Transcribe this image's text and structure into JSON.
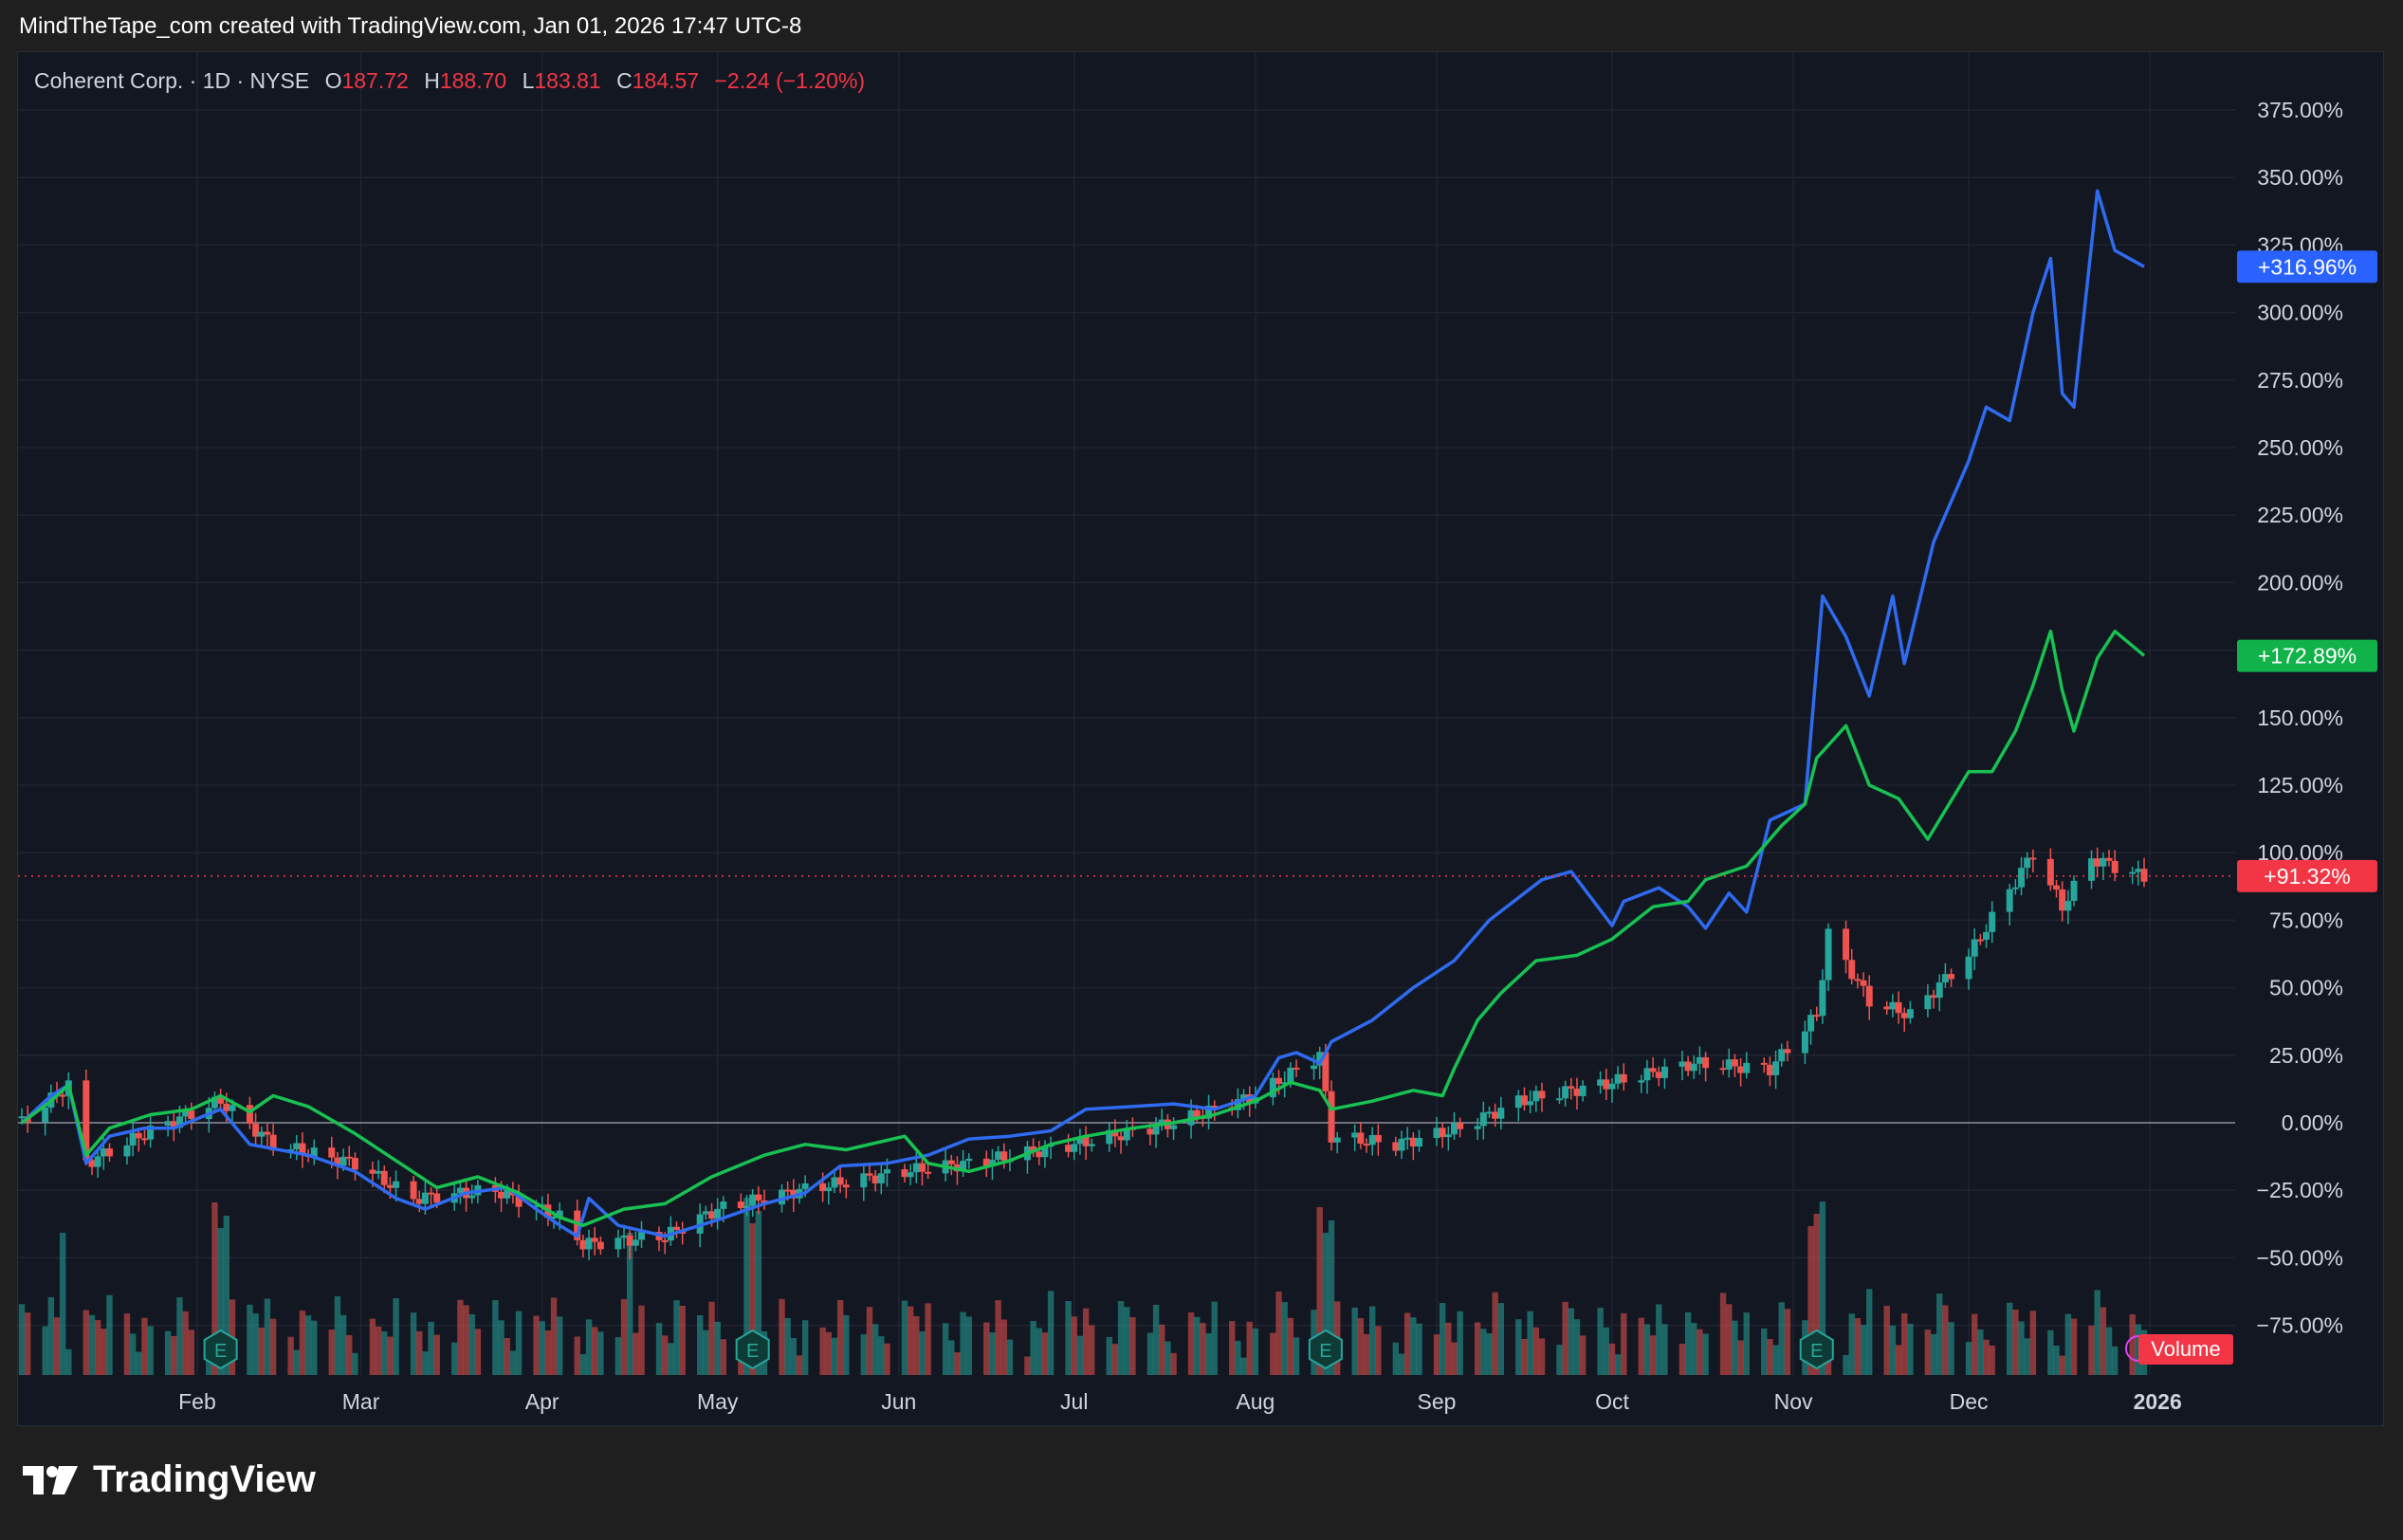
{
  "header": {
    "attribution": "MindTheTape_com created with TradingView.com, Jan 01, 2026 17:47 UTC-8"
  },
  "legend": {
    "symbol": "Coherent Corp. · 1D · NYSE",
    "open_label": "O",
    "open": "187.72",
    "high_label": "H",
    "high": "188.70",
    "low_label": "L",
    "low": "183.81",
    "close_label": "C",
    "close": "184.57",
    "change": "−2.24 (−1.20%)"
  },
  "footer": {
    "brand": "TradingView"
  },
  "colors": {
    "background": "#131722",
    "grid": "#1f2431",
    "axis_text": "#d1d4dc",
    "up": "#26a69a",
    "down": "#ef5350",
    "blue": "#2f6bf0",
    "green": "#18c152"
  },
  "chart_data": {
    "type": "line",
    "title": "",
    "x_labels": [
      "Feb",
      "Mar",
      "Apr",
      "May",
      "Jun",
      "Jul",
      "Aug",
      "Sep",
      "Oct",
      "Nov",
      "Dec",
      "2026"
    ],
    "y_ticks": [
      "375.00%",
      "350.00%",
      "325.00%",
      "300.00%",
      "275.00%",
      "250.00%",
      "225.00%",
      "200.00%",
      "150.00%",
      "125.00%",
      "100.00%",
      "75.00%",
      "50.00%",
      "25.00%",
      "0.00%",
      "−25.00%",
      "−50.00%",
      "−75.00%"
    ],
    "ylim": [
      -100,
      385
    ],
    "x_range": [
      "2025-01-02",
      "2025-12-31"
    ],
    "zero_line": 0,
    "grid": true,
    "last_value_labels": [
      {
        "series": "blue",
        "text": "+316.96%",
        "value": 316.96,
        "color": "#2962ff"
      },
      {
        "series": "green",
        "text": "+172.89%",
        "value": 172.89,
        "color": "#12b24a"
      },
      {
        "series": "candles",
        "text": "+91.32%",
        "value": 91.32,
        "color": "#f23645"
      }
    ],
    "volume_label": "Volume",
    "earnings_marker": "E",
    "earnings_dates": [
      "2025-02-05",
      "2025-05-07",
      "2025-08-13",
      "2025-11-05"
    ],
    "series": [
      {
        "color": "#2f6bf0",
        "points": [
          [
            "2025-01-02",
            0
          ],
          [
            "2025-01-07",
            10
          ],
          [
            "2025-01-10",
            14
          ],
          [
            "2025-01-13",
            -15
          ],
          [
            "2025-01-17",
            -5
          ],
          [
            "2025-01-23",
            -2
          ],
          [
            "2025-01-28",
            -2
          ],
          [
            "2025-02-05",
            5
          ],
          [
            "2025-02-10",
            -8
          ],
          [
            "2025-02-20",
            -12
          ],
          [
            "2025-02-28",
            -18
          ],
          [
            "2025-03-07",
            -28
          ],
          [
            "2025-03-12",
            -32
          ],
          [
            "2025-03-19",
            -26
          ],
          [
            "2025-03-26",
            -24
          ],
          [
            "2025-03-31",
            -32
          ],
          [
            "2025-04-04",
            -38
          ],
          [
            "2025-04-07",
            -42
          ],
          [
            "2025-04-09",
            -28
          ],
          [
            "2025-04-14",
            -38
          ],
          [
            "2025-04-22",
            -42
          ],
          [
            "2025-05-01",
            -36
          ],
          [
            "2025-05-09",
            -30
          ],
          [
            "2025-05-16",
            -26
          ],
          [
            "2025-05-22",
            -16
          ],
          [
            "2025-05-30",
            -15
          ],
          [
            "2025-06-06",
            -12
          ],
          [
            "2025-06-13",
            -6
          ],
          [
            "2025-06-20",
            -5
          ],
          [
            "2025-06-27",
            -3
          ],
          [
            "2025-07-03",
            5
          ],
          [
            "2025-07-11",
            6
          ],
          [
            "2025-07-18",
            7
          ],
          [
            "2025-07-25",
            5
          ],
          [
            "2025-08-01",
            10
          ],
          [
            "2025-08-05",
            24
          ],
          [
            "2025-08-08",
            26
          ],
          [
            "2025-08-12",
            22
          ],
          [
            "2025-08-14",
            30
          ],
          [
            "2025-08-21",
            38
          ],
          [
            "2025-08-28",
            50
          ],
          [
            "2025-09-04",
            60
          ],
          [
            "2025-09-10",
            75
          ],
          [
            "2025-09-16",
            85
          ],
          [
            "2025-09-19",
            90
          ],
          [
            "2025-09-24",
            93
          ],
          [
            "2025-10-01",
            73
          ],
          [
            "2025-10-03",
            82
          ],
          [
            "2025-10-09",
            87
          ],
          [
            "2025-10-14",
            80
          ],
          [
            "2025-10-17",
            72
          ],
          [
            "2025-10-21",
            85
          ],
          [
            "2025-10-24",
            78
          ],
          [
            "2025-10-28",
            112
          ],
          [
            "2025-11-03",
            118
          ],
          [
            "2025-11-06",
            195
          ],
          [
            "2025-11-10",
            180
          ],
          [
            "2025-11-14",
            158
          ],
          [
            "2025-11-18",
            195
          ],
          [
            "2025-11-20",
            170
          ],
          [
            "2025-11-25",
            215
          ],
          [
            "2025-12-01",
            245
          ],
          [
            "2025-12-04",
            265
          ],
          [
            "2025-12-08",
            260
          ],
          [
            "2025-12-12",
            300
          ],
          [
            "2025-12-15",
            320
          ],
          [
            "2025-12-17",
            270
          ],
          [
            "2025-12-19",
            265
          ],
          [
            "2025-12-23",
            345
          ],
          [
            "2025-12-26",
            323
          ],
          [
            "2025-12-31",
            317
          ]
        ]
      },
      {
        "color": "#18c152",
        "points": [
          [
            "2025-01-02",
            0
          ],
          [
            "2025-01-07",
            8
          ],
          [
            "2025-01-10",
            14
          ],
          [
            "2025-01-13",
            -12
          ],
          [
            "2025-01-17",
            -2
          ],
          [
            "2025-01-24",
            3
          ],
          [
            "2025-01-31",
            5
          ],
          [
            "2025-02-05",
            10
          ],
          [
            "2025-02-10",
            4
          ],
          [
            "2025-02-14",
            10
          ],
          [
            "2025-02-20",
            6
          ],
          [
            "2025-02-28",
            -4
          ],
          [
            "2025-03-07",
            -14
          ],
          [
            "2025-03-14",
            -24
          ],
          [
            "2025-03-21",
            -20
          ],
          [
            "2025-03-28",
            -26
          ],
          [
            "2025-04-04",
            -35
          ],
          [
            "2025-04-08",
            -38
          ],
          [
            "2025-04-15",
            -32
          ],
          [
            "2025-04-22",
            -30
          ],
          [
            "2025-04-30",
            -20
          ],
          [
            "2025-05-09",
            -12
          ],
          [
            "2025-05-16",
            -8
          ],
          [
            "2025-05-23",
            -10
          ],
          [
            "2025-06-02",
            -5
          ],
          [
            "2025-06-06",
            -15
          ],
          [
            "2025-06-13",
            -18
          ],
          [
            "2025-06-20",
            -14
          ],
          [
            "2025-06-27",
            -8
          ],
          [
            "2025-07-03",
            -5
          ],
          [
            "2025-07-11",
            -2
          ],
          [
            "2025-07-18",
            0
          ],
          [
            "2025-07-25",
            3
          ],
          [
            "2025-08-01",
            8
          ],
          [
            "2025-08-07",
            15
          ],
          [
            "2025-08-12",
            12
          ],
          [
            "2025-08-14",
            5
          ],
          [
            "2025-08-21",
            8
          ],
          [
            "2025-08-28",
            12
          ],
          [
            "2025-09-02",
            10
          ],
          [
            "2025-09-04",
            20
          ],
          [
            "2025-09-08",
            38
          ],
          [
            "2025-09-12",
            48
          ],
          [
            "2025-09-18",
            60
          ],
          [
            "2025-09-25",
            62
          ],
          [
            "2025-10-01",
            68
          ],
          [
            "2025-10-08",
            80
          ],
          [
            "2025-10-14",
            82
          ],
          [
            "2025-10-17",
            90
          ],
          [
            "2025-10-24",
            95
          ],
          [
            "2025-10-30",
            110
          ],
          [
            "2025-11-03",
            118
          ],
          [
            "2025-11-05",
            135
          ],
          [
            "2025-11-10",
            147
          ],
          [
            "2025-11-14",
            125
          ],
          [
            "2025-11-19",
            120
          ],
          [
            "2025-11-24",
            105
          ],
          [
            "2025-12-01",
            130
          ],
          [
            "2025-12-05",
            130
          ],
          [
            "2025-12-09",
            145
          ],
          [
            "2025-12-12",
            162
          ],
          [
            "2025-12-15",
            182
          ],
          [
            "2025-12-17",
            160
          ],
          [
            "2025-12-19",
            145
          ],
          [
            "2025-12-23",
            172
          ],
          [
            "2025-12-26",
            182
          ],
          [
            "2025-12-31",
            173
          ]
        ]
      },
      {
        "type": "candlestick",
        "points": [
          [
            "2025-01-02",
            0
          ],
          [
            "2025-01-10",
            14
          ],
          [
            "2025-01-13",
            -15
          ],
          [
            "2025-01-24",
            -3
          ],
          [
            "2025-02-05",
            8
          ],
          [
            "2025-02-14",
            -8
          ],
          [
            "2025-02-28",
            -15
          ],
          [
            "2025-03-10",
            -28
          ],
          [
            "2025-03-24",
            -25
          ],
          [
            "2025-04-04",
            -35
          ],
          [
            "2025-04-08",
            -45
          ],
          [
            "2025-04-22",
            -42
          ],
          [
            "2025-05-01",
            -32
          ],
          [
            "2025-05-15",
            -25
          ],
          [
            "2025-06-02",
            -18
          ],
          [
            "2025-06-13",
            -15
          ],
          [
            "2025-07-01",
            -8
          ],
          [
            "2025-07-18",
            0
          ],
          [
            "2025-08-01",
            10
          ],
          [
            "2025-08-12",
            25
          ],
          [
            "2025-08-14",
            -5
          ],
          [
            "2025-08-25",
            -8
          ],
          [
            "2025-09-05",
            -2
          ],
          [
            "2025-09-15",
            8
          ],
          [
            "2025-10-01",
            15
          ],
          [
            "2025-10-15",
            22
          ],
          [
            "2025-10-28",
            20
          ],
          [
            "2025-11-05",
            40
          ],
          [
            "2025-11-07",
            70
          ],
          [
            "2025-11-14",
            45
          ],
          [
            "2025-11-21",
            40
          ],
          [
            "2025-12-01",
            62
          ],
          [
            "2025-12-12",
            100
          ],
          [
            "2025-12-17",
            80
          ],
          [
            "2025-12-22",
            98
          ],
          [
            "2025-12-31",
            91
          ]
        ]
      }
    ]
  }
}
